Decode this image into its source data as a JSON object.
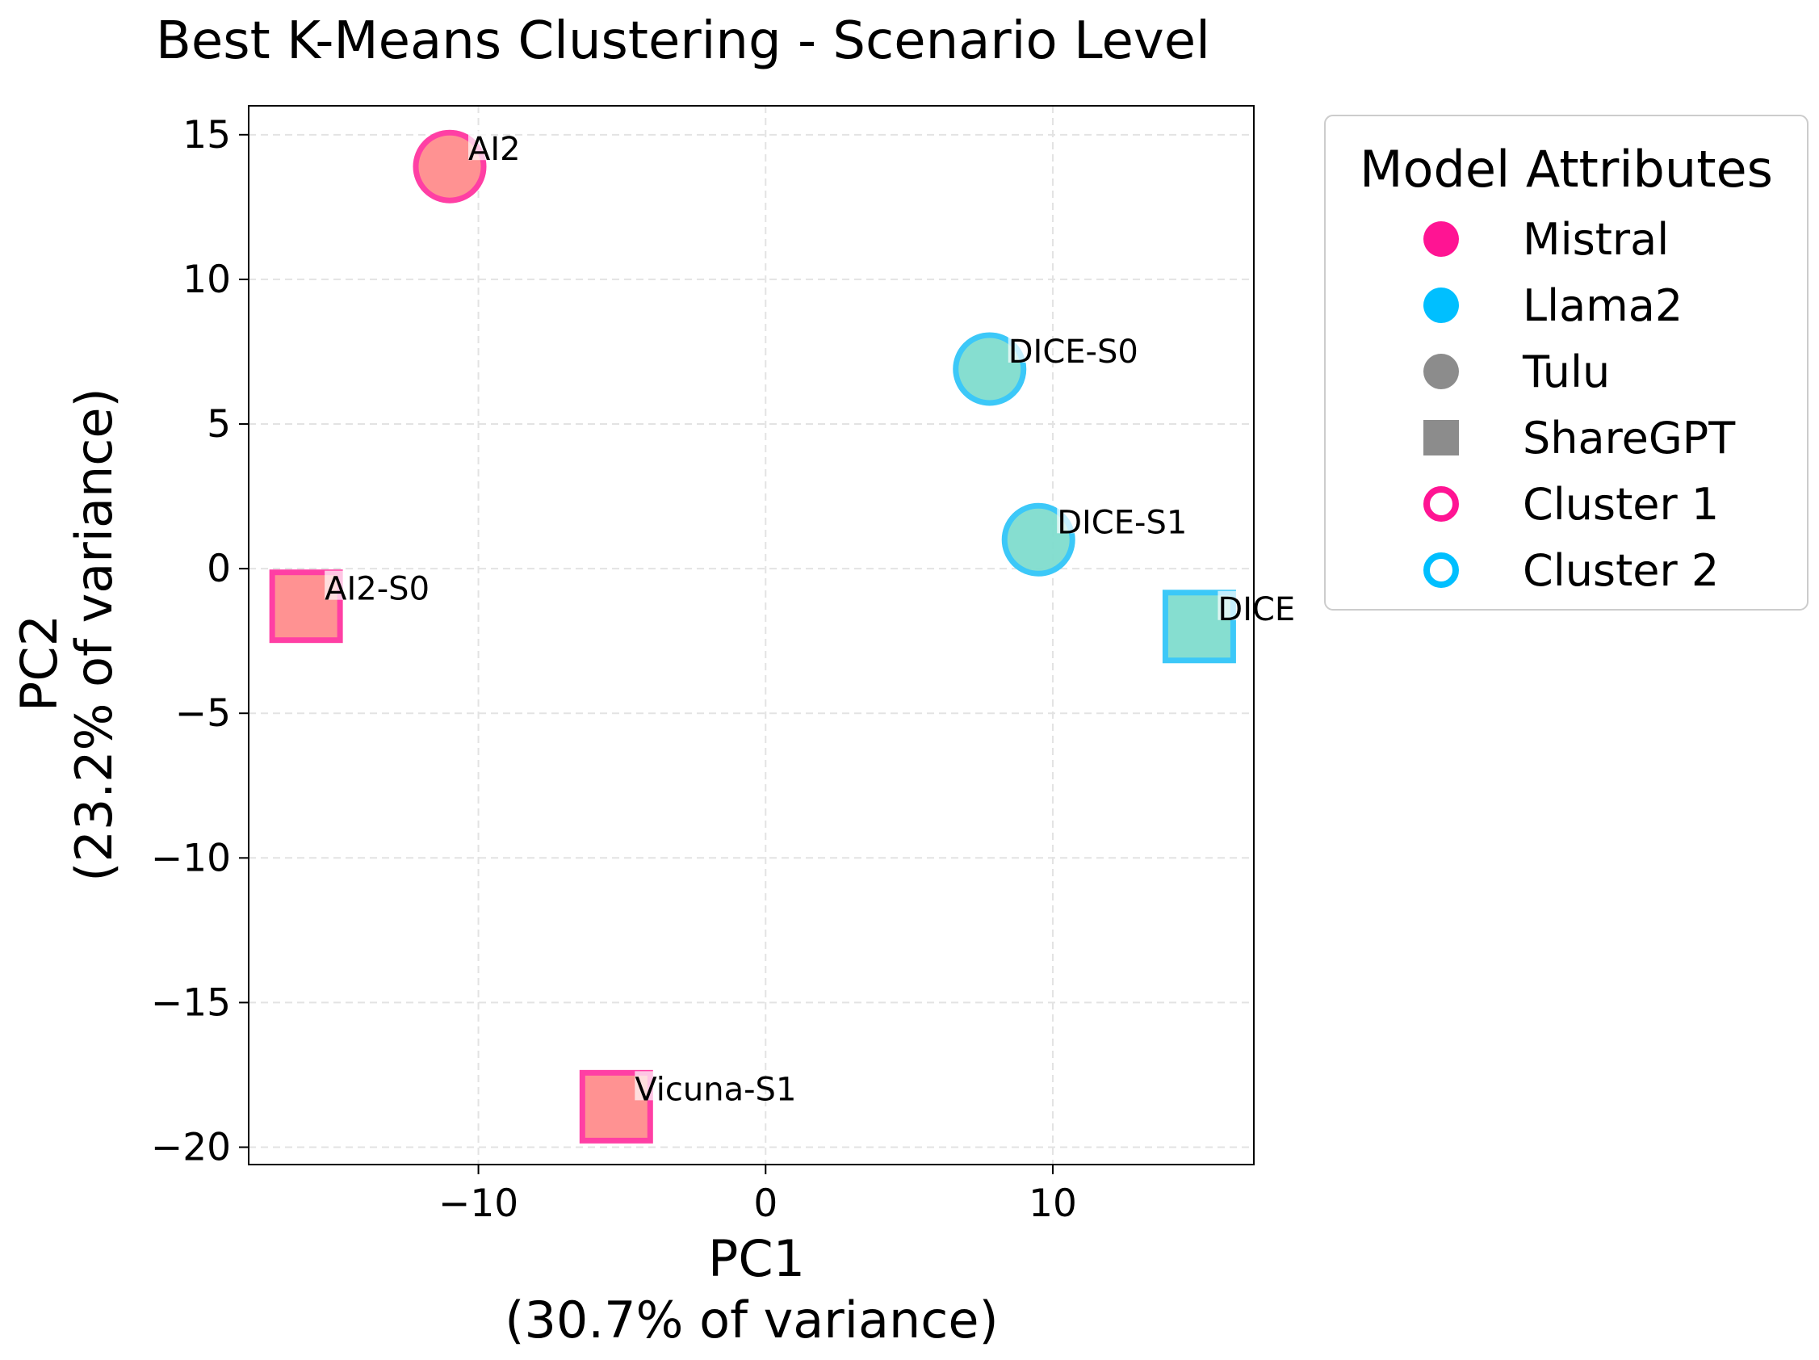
{
  "chart_data": {
    "type": "scatter",
    "title": "Best K-Means Clustering - Scenario Level",
    "xlabel": "PC1",
    "xlabel_sub": "(30.7% of variance)",
    "ylabel": "PC2",
    "ylabel_sub": "(23.2% of variance)",
    "xlim": [
      -18,
      17
    ],
    "ylim": [
      -20.6,
      16
    ],
    "xticks": [
      -10,
      0,
      10
    ],
    "xtick_labels": [
      "−10",
      "0",
      "10"
    ],
    "yticks": [
      15,
      10,
      5,
      0,
      -5,
      -10,
      -15,
      -20
    ],
    "ytick_labels": [
      "15",
      "10",
      "5",
      "0",
      "−5",
      "−10",
      "−15",
      "−20"
    ],
    "grid": true,
    "points": [
      {
        "label": "AI2",
        "x": -11.0,
        "y": 13.9,
        "marker": "circle",
        "fill": "#ff8c8c",
        "edge": "#ff3fa4",
        "cluster": "Cluster 1"
      },
      {
        "label": "AI2-S0",
        "x": -16.0,
        "y": -1.3,
        "marker": "square",
        "fill": "#ff8c8c",
        "edge": "#ff3fa4",
        "cluster": "Cluster 1"
      },
      {
        "label": "Vicuna-S1",
        "x": -5.2,
        "y": -18.6,
        "marker": "square",
        "fill": "#ff8c8c",
        "edge": "#ff3fa4",
        "cluster": "Cluster 1"
      },
      {
        "label": "DICE-S0",
        "x": 7.8,
        "y": 6.9,
        "marker": "circle",
        "fill": "#7fdcce",
        "edge": "#3cc8f8",
        "cluster": "Cluster 2"
      },
      {
        "label": "DICE-S1",
        "x": 9.5,
        "y": 1.0,
        "marker": "circle",
        "fill": "#7fdcce",
        "edge": "#3cc8f8",
        "cluster": "Cluster 2"
      },
      {
        "label": "DICE",
        "x": 15.1,
        "y": -2.0,
        "marker": "square",
        "fill": "#7fdcce",
        "edge": "#3cc8f8",
        "cluster": "Cluster 2"
      }
    ],
    "legend": {
      "title": "Model Attributes",
      "position": "outside-right-top",
      "entries": [
        {
          "label": "Mistral",
          "marker": "circle-filled",
          "color": "#ff1493"
        },
        {
          "label": "Llama2",
          "marker": "circle-filled",
          "color": "#00bfff"
        },
        {
          "label": "Tulu",
          "marker": "circle-filled",
          "color": "#8c8c8c"
        },
        {
          "label": "ShareGPT",
          "marker": "square-filled",
          "color": "#8c8c8c"
        },
        {
          "label": "Cluster 1",
          "marker": "circle-outline",
          "color": "#ff1493"
        },
        {
          "label": "Cluster 2",
          "marker": "circle-outline",
          "color": "#00bfff"
        }
      ]
    }
  }
}
